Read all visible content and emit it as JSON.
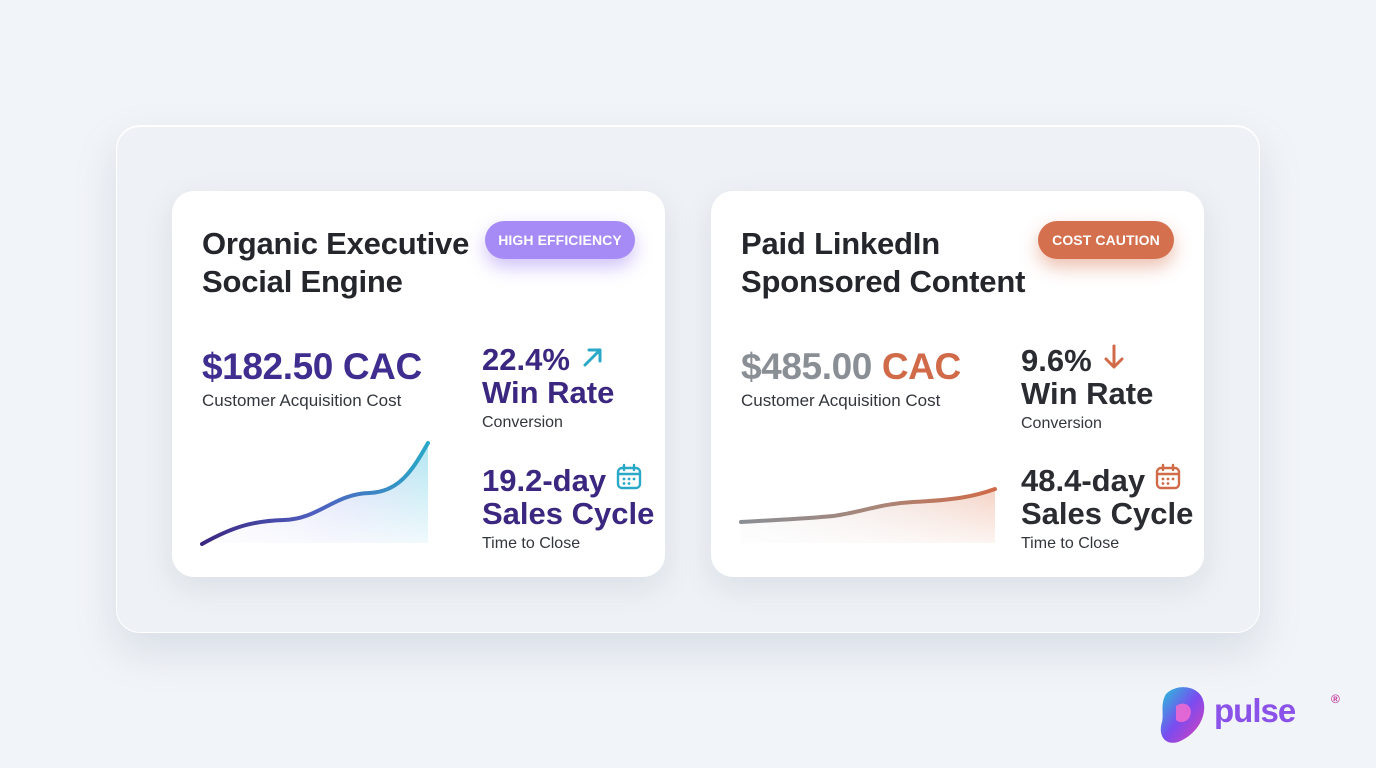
{
  "cards": [
    {
      "title_line1": "Organic Executive",
      "title_line2": "Social Engine",
      "badge": "HIGH EFFICIENCY",
      "cac_value": "$182.50",
      "cac_unit": "CAC",
      "cac_label": "Customer Acquisition Cost",
      "win_rate_value": "22.4%",
      "win_rate_label": "Win Rate",
      "win_rate_sub": "Conversion",
      "win_rate_trend": "arrow-up-right-icon",
      "cycle_value": "19.2-day",
      "cycle_label": "Sales Cycle",
      "cycle_sub": "Time to Close",
      "cycle_icon": "calendar-icon",
      "colors": {
        "accent": "#3f2d8f",
        "badge": "#a68af5",
        "trend": "#2aa8c8",
        "line_start": "#3b2780",
        "line_end": "#2aa8c8"
      }
    },
    {
      "title_line1": "Paid LinkedIn",
      "title_line2": "Sponsored Content",
      "badge": "COST CAUTION",
      "cac_value": "$485.00",
      "cac_unit": "CAC",
      "cac_label": "Customer Acquisition Cost",
      "win_rate_value": "9.6%",
      "win_rate_label": "Win Rate",
      "win_rate_sub": "Conversion",
      "win_rate_trend": "arrow-down-icon",
      "cycle_value": "48.4-day",
      "cycle_label": "Sales Cycle",
      "cycle_sub": "Time to Close",
      "cycle_icon": "calendar-icon",
      "colors": {
        "accent": "#d06a48",
        "badge": "#d4704e",
        "trend": "#d06a48",
        "line_start": "#8a8f96",
        "line_end": "#d06a48"
      }
    }
  ],
  "logo": {
    "text": "pulse",
    "registered": "®"
  }
}
